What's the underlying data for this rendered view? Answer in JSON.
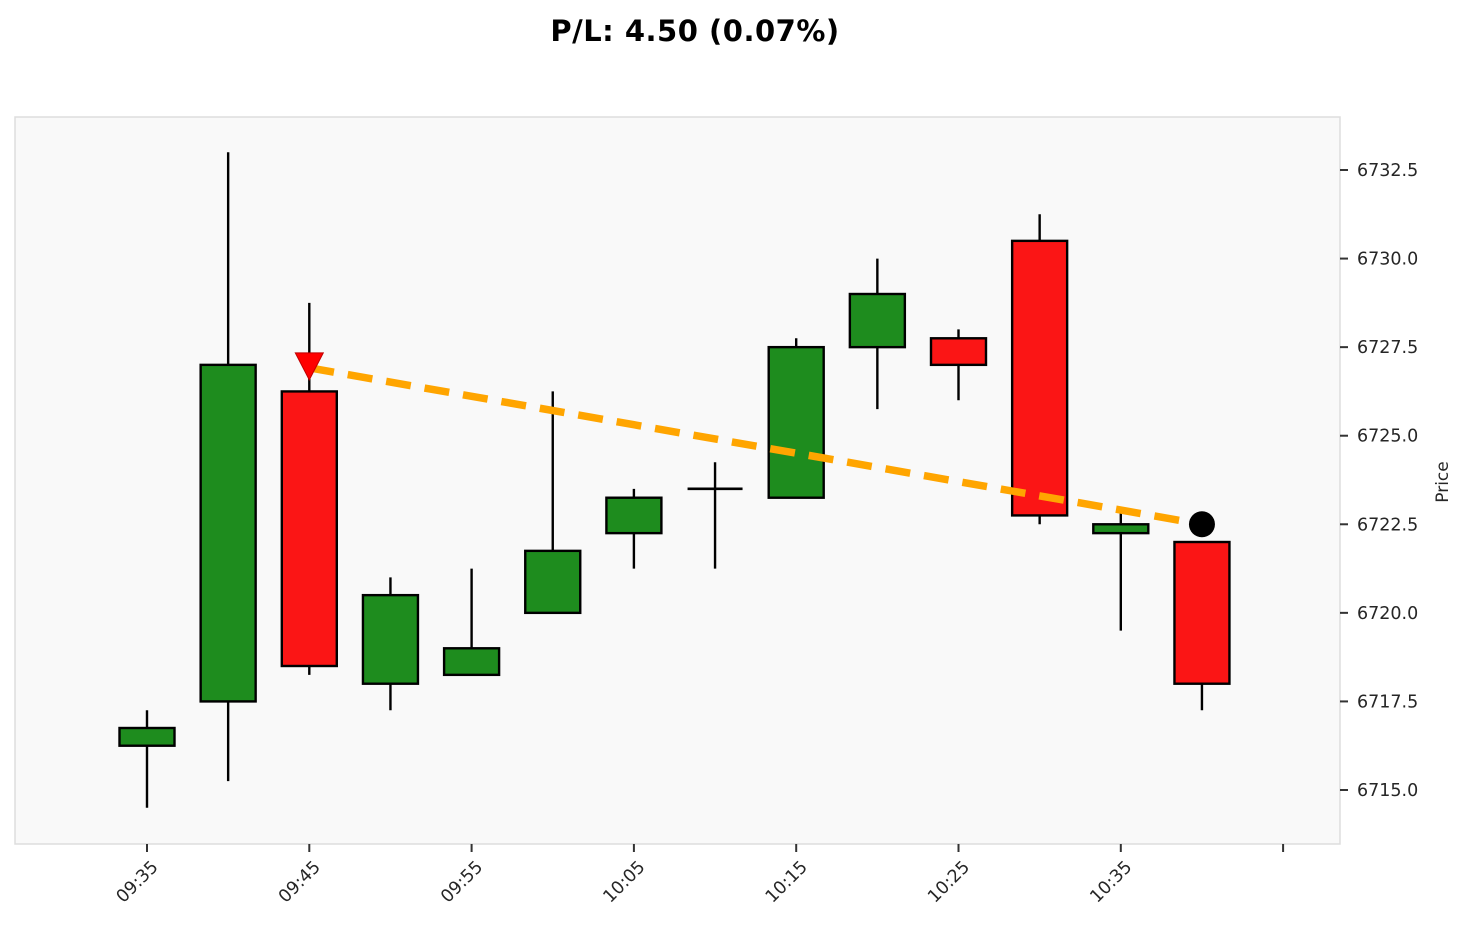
{
  "title": "P/L: 4.50 (0.07%)",
  "chart_data": {
    "type": "candlestick",
    "title": "P/L: 4.50 (0.07%)",
    "xlabel": "",
    "ylabel": "Price",
    "y_axis_side": "right",
    "grid": false,
    "ylim": [
      6713.5,
      6734.0
    ],
    "y_ticks": [
      6732.5,
      6730.0,
      6727.5,
      6725.0,
      6722.5,
      6720.0,
      6717.5,
      6715.0
    ],
    "x_tick_labels": [
      "09:35",
      "09:45",
      "09:55",
      "10:05",
      "10:15",
      "10:25",
      "10:35",
      ""
    ],
    "x_tick_indices": [
      0,
      2,
      4,
      6,
      8,
      10,
      12,
      14
    ],
    "candles": [
      {
        "time": "09:35",
        "open": 6716.25,
        "high": 6717.25,
        "low": 6714.5,
        "close": 6716.75
      },
      {
        "time": "09:40",
        "open": 6717.5,
        "high": 6733.0,
        "low": 6715.25,
        "close": 6727.0
      },
      {
        "time": "09:45",
        "open": 6726.25,
        "high": 6728.75,
        "low": 6718.25,
        "close": 6718.5
      },
      {
        "time": "09:50",
        "open": 6718.0,
        "high": 6721.0,
        "low": 6717.25,
        "close": 6720.5
      },
      {
        "time": "09:55",
        "open": 6718.25,
        "high": 6721.25,
        "low": 6718.25,
        "close": 6719.0
      },
      {
        "time": "10:00",
        "open": 6720.0,
        "high": 6726.25,
        "low": 6720.0,
        "close": 6721.75
      },
      {
        "time": "10:05",
        "open": 6722.25,
        "high": 6723.5,
        "low": 6721.25,
        "close": 6723.25
      },
      {
        "time": "10:10",
        "open": 6723.5,
        "high": 6724.25,
        "low": 6721.25,
        "close": 6723.5
      },
      {
        "time": "10:15",
        "open": 6723.25,
        "high": 6727.75,
        "low": 6723.25,
        "close": 6727.5
      },
      {
        "time": "10:20",
        "open": 6727.5,
        "high": 6730.0,
        "low": 6725.75,
        "close": 6729.0
      },
      {
        "time": "10:25",
        "open": 6727.75,
        "high": 6728.0,
        "low": 6726.0,
        "close": 6727.0
      },
      {
        "time": "10:30",
        "open": 6730.5,
        "high": 6731.25,
        "low": 6722.5,
        "close": 6722.75
      },
      {
        "time": "10:35",
        "open": 6722.25,
        "high": 6723.0,
        "low": 6719.5,
        "close": 6722.5
      },
      {
        "time": "10:40",
        "open": 6722.0,
        "high": 6722.0,
        "low": 6717.25,
        "close": 6718.0
      }
    ],
    "trade": {
      "entry": {
        "time": "09:45",
        "price": 6727.0,
        "marker": "triangle-down",
        "color": "#FF0000"
      },
      "exit": {
        "time": "10:40",
        "price": 6722.5,
        "marker": "circle",
        "color": "#000000"
      },
      "line": {
        "style": "dashed",
        "color": "#FFA500"
      }
    },
    "colors": {
      "up": "#1E8C1E",
      "down": "#FB1515",
      "outline": "#000000",
      "plot_bg": "#F9F9F9",
      "spine": "#DDDDDD",
      "tick": "#333333"
    }
  }
}
